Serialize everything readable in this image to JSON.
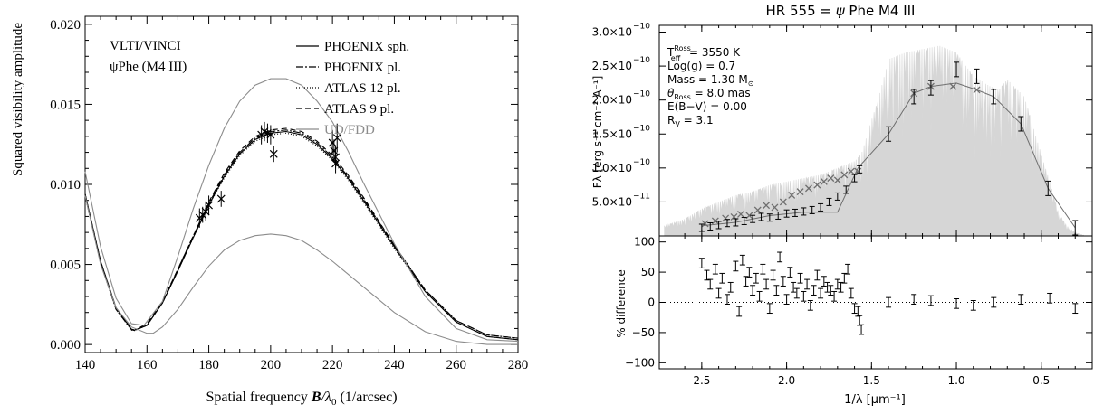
{
  "chart_data": [
    {
      "type": "line",
      "xlabel_text": "Spatial frequency ",
      "xlabel_B": "B",
      "xlabel_slash": "/",
      "xlabel_lambda": "λ",
      "xlabel_sub": "0",
      "xlabel_units": " (1/arcsec)",
      "ylabel": "Squared visibility amplitude",
      "xlim": [
        140,
        280
      ],
      "ylim": [
        -0.0005,
        0.0205
      ],
      "x_ticks": [
        140,
        160,
        180,
        200,
        220,
        240,
        260,
        280
      ],
      "x_tick_labels": [
        "140",
        "160",
        "180",
        "200",
        "220",
        "240",
        "260",
        "280"
      ],
      "y_ticks": [
        0.0,
        0.005,
        0.01,
        0.015,
        0.02
      ],
      "y_tick_labels": [
        "0.000",
        "0.005",
        "0.010",
        "0.015",
        "0.020"
      ],
      "annotation_instrument": "VLTI/VINCI",
      "annotation_star": "ψPhe (M4 III)",
      "legend_position": "top-right",
      "series": [
        {
          "name": "PHOENIX sph.",
          "color": "#000000",
          "dash": "",
          "x": [
            140,
            145,
            150,
            155,
            156,
            160,
            165,
            170,
            175,
            180,
            185,
            190,
            195,
            200,
            205,
            210,
            215,
            220,
            225,
            230,
            240,
            250,
            260,
            270,
            280
          ],
          "y": [
            0.0094,
            0.0052,
            0.0023,
            0.00095,
            0.0009,
            0.0012,
            0.0026,
            0.0046,
            0.0067,
            0.0087,
            0.0105,
            0.0119,
            0.0128,
            0.0132,
            0.0133,
            0.0131,
            0.0125,
            0.0116,
            0.0104,
            0.009,
            0.0061,
            0.0033,
            0.0014,
            0.0005,
            0.0003
          ]
        },
        {
          "name": "PHOENIX pl.",
          "color": "#000000",
          "dash": "8,2,2,2",
          "x": [
            140,
            145,
            150,
            155,
            156,
            160,
            165,
            170,
            175,
            180,
            185,
            190,
            195,
            200,
            205,
            210,
            215,
            220,
            225,
            230,
            240,
            250,
            260,
            270,
            280
          ],
          "y": [
            0.0093,
            0.0051,
            0.0022,
            0.00092,
            0.00088,
            0.0012,
            0.0026,
            0.0047,
            0.0068,
            0.0088,
            0.0106,
            0.012,
            0.0129,
            0.0133,
            0.0134,
            0.0132,
            0.0126,
            0.0117,
            0.0105,
            0.0091,
            0.0062,
            0.0034,
            0.0015,
            0.0006,
            0.0004
          ]
        },
        {
          "name": "ATLAS 12 pl.",
          "color": "#000000",
          "dash": "1,2",
          "x": [
            140,
            145,
            150,
            155,
            156,
            160,
            165,
            170,
            175,
            180,
            185,
            190,
            195,
            200,
            205,
            210,
            215,
            220,
            225,
            230,
            240,
            250,
            260,
            270,
            280
          ],
          "y": [
            0.0093,
            0.0051,
            0.0022,
            0.0009,
            0.00087,
            0.0012,
            0.0026,
            0.0046,
            0.0067,
            0.0087,
            0.0104,
            0.0118,
            0.0127,
            0.0131,
            0.0132,
            0.013,
            0.0124,
            0.0115,
            0.0103,
            0.0089,
            0.006,
            0.0033,
            0.0014,
            0.0005,
            0.0003
          ]
        },
        {
          "name": "ATLAS 9 pl.",
          "color": "#000000",
          "dash": "6,4",
          "x": [
            140,
            145,
            150,
            155,
            156,
            160,
            165,
            170,
            175,
            180,
            185,
            190,
            195,
            200,
            205,
            210,
            215,
            220,
            225,
            230,
            240,
            250,
            260,
            270,
            280
          ],
          "y": [
            0.0094,
            0.0052,
            0.0023,
            0.00096,
            0.0009,
            0.0013,
            0.0027,
            0.0047,
            0.0068,
            0.0089,
            0.0107,
            0.0121,
            0.013,
            0.0134,
            0.0135,
            0.0133,
            0.0127,
            0.0118,
            0.0106,
            0.0092,
            0.0062,
            0.0034,
            0.0015,
            0.0006,
            0.0004
          ]
        },
        {
          "name": "UD/FDD",
          "color": "#8c8c8c",
          "dash": "",
          "x": [
            140,
            145,
            150,
            155,
            159,
            165,
            170,
            175,
            180,
            185,
            190,
            195,
            200,
            205,
            210,
            215,
            220,
            225,
            230,
            240,
            250,
            260,
            270,
            280
          ],
          "y": [
            0.0108,
            0.0061,
            0.0029,
            0.0013,
            0.0012,
            0.0027,
            0.0055,
            0.0085,
            0.0112,
            0.0135,
            0.0152,
            0.0162,
            0.0166,
            0.0166,
            0.0162,
            0.0152,
            0.0139,
            0.0121,
            0.0101,
            0.0063,
            0.003,
            0.001,
            0.0003,
            0.0002
          ]
        },
        {
          "name": "",
          "color": "#8c8c8c",
          "dash": "",
          "x": [
            140,
            145,
            150,
            155,
            160,
            162,
            165,
            170,
            175,
            180,
            185,
            190,
            195,
            200,
            205,
            210,
            215,
            220,
            225,
            230,
            240,
            250,
            260,
            270,
            280
          ],
          "y": [
            0.0093,
            0.005,
            0.0023,
            0.0011,
            0.0007,
            0.0007,
            0.0011,
            0.0022,
            0.0036,
            0.0049,
            0.0059,
            0.0065,
            0.0068,
            0.0069,
            0.0068,
            0.0065,
            0.0059,
            0.0052,
            0.0044,
            0.0036,
            0.002,
            0.0008,
            0.0002,
            0.0,
            0.0
          ]
        }
      ],
      "observations": {
        "name": "",
        "x": [
          177,
          178,
          179,
          180,
          184,
          197,
          198,
          199,
          200,
          201,
          220,
          220.5,
          221,
          221,
          221.5
        ],
        "y": [
          0.0079,
          0.0081,
          0.0083,
          0.0087,
          0.0091,
          0.0131,
          0.0133,
          0.0132,
          0.0131,
          0.0119,
          0.0126,
          0.0121,
          0.0117,
          0.0113,
          0.0129
        ],
        "err": [
          0.0006,
          0.0005,
          0.0006,
          0.0006,
          0.0005,
          0.0006,
          0.0006,
          0.0006,
          0.0006,
          0.0005,
          0.0008,
          0.0007,
          0.0007,
          0.0006,
          0.0009
        ]
      }
    },
    {
      "type": "line",
      "title_text": "HR 555 = ",
      "title_psi": "ψ",
      "title_rest": " Phe  M4 III",
      "xlabel": "1/λ [μm⁻¹]",
      "ylabel": "Fλ [erg s⁻¹ cm⁻² A⁻¹]",
      "xlim": [
        2.75,
        0.2
      ],
      "ylim": [
        0.0,
        3.1e-10
      ],
      "x_ticks": [
        2.5,
        2.0,
        1.5,
        1.0,
        0.5
      ],
      "x_tick_labels": [
        "2.5",
        "2.0",
        "1.5",
        "1.0",
        "0.5"
      ],
      "y_ticks": [
        5e-11,
        1e-10,
        1.5e-10,
        2e-10,
        2.5e-10,
        3e-10
      ],
      "y_tick_mantissas": [
        "5.0×10",
        "1.0×10",
        "1.5×10",
        "2.0×10",
        "2.5×10",
        "3.0×10"
      ],
      "y_tick_exponents": [
        "−11",
        "−10",
        "−10",
        "−10",
        "−10",
        "−10"
      ],
      "params": {
        "teff_label": "T",
        "teff_sup": "Ross",
        "teff_sub": "eff",
        "teff_value": " = 3550 K",
        "logg": "Log(g) =   0.7",
        "mass_label": "Mass =   1.30 M",
        "mass_sun": "⊙",
        "theta_label": "θ",
        "theta_sub": "Ross",
        "theta_value": " =   8.0 mas",
        "ebv": "E(B−V) = 0.00",
        "rv": "R",
        "rv_sub": "V",
        "rv_value": " = 3.1"
      },
      "model_spectrum": {
        "color": "#d6d6d6",
        "upper_x": [
          2.72,
          2.6,
          2.5,
          2.4,
          2.3,
          2.2,
          2.1,
          2.0,
          1.9,
          1.8,
          1.7,
          1.6,
          1.56,
          1.5,
          1.45,
          1.4,
          1.3,
          1.2,
          1.1,
          1.0,
          0.9,
          0.8,
          0.75,
          0.7,
          0.6,
          0.5,
          0.45,
          0.4,
          0.35,
          0.3,
          0.25
        ],
        "upper_y": [
          1.5e-11,
          2.5e-11,
          4e-11,
          5e-11,
          6e-11,
          6.5e-11,
          7.5e-11,
          8e-11,
          8.5e-11,
          9e-11,
          1e-10,
          1.1e-10,
          1.2e-10,
          1.7e-10,
          2.1e-10,
          2.6e-10,
          2.7e-10,
          2.75e-10,
          2.8e-10,
          2.7e-10,
          2.35e-10,
          2.2e-10,
          2.15e-10,
          2.3e-10,
          2.05e-10,
          1.2e-10,
          8e-11,
          3.5e-11,
          1.5e-11,
          5e-12,
          1e-12
        ],
        "lower_x": [
          2.72,
          2.6,
          2.5,
          2.4,
          2.3,
          2.2,
          2.1,
          2.0,
          1.9,
          1.8,
          1.7,
          1.6,
          1.56,
          1.5,
          1.45,
          1.4,
          1.3,
          1.2,
          1.1,
          1.0,
          0.9,
          0.8,
          0.75,
          0.7,
          0.6,
          0.5,
          0.45,
          0.4,
          0.35,
          0.3,
          0.25
        ],
        "lower_y": [
          0,
          0,
          0,
          0,
          0,
          0,
          0,
          0,
          0,
          0,
          0,
          0,
          0,
          0,
          0,
          0,
          0,
          0,
          0,
          0,
          0,
          0,
          0,
          0,
          0,
          0,
          0,
          0,
          0,
          0,
          0
        ]
      },
      "synthetic_photometry": {
        "color": "#6e6e6e",
        "x": [
          2.5,
          2.3,
          2.1,
          1.9,
          1.7,
          1.58,
          1.4,
          1.25,
          1.15,
          1.0,
          0.88,
          0.78,
          0.62,
          0.46,
          0.3
        ],
        "y": [
          1.5e-11,
          2e-11,
          3e-11,
          3.5e-11,
          3.5e-11,
          1e-10,
          1.5e-10,
          2.1e-10,
          2.2e-10,
          2.25e-10,
          2.15e-10,
          2.05e-10,
          1.65e-10,
          7e-11,
          1.2e-11
        ]
      },
      "observed_flux": {
        "x": [
          2.5,
          2.45,
          2.4,
          2.35,
          2.3,
          2.25,
          2.2,
          2.15,
          2.1,
          2.05,
          2.0,
          1.95,
          1.9,
          1.85,
          1.8,
          1.75,
          1.7,
          1.65,
          1.6,
          1.57,
          1.4,
          1.25,
          1.15,
          1.0,
          0.88,
          0.78,
          0.62,
          0.46,
          0.3
        ],
        "y": [
          1.2e-11,
          1.4e-11,
          1.6e-11,
          1.9e-11,
          2e-11,
          2.2e-11,
          2.5e-11,
          2.8e-11,
          2.7e-11,
          3e-11,
          3.3e-11,
          3.4e-11,
          3.6e-11,
          3.8e-11,
          4.2e-11,
          5e-11,
          5.8e-11,
          6.8e-11,
          8.5e-11,
          9.8e-11,
          1.5e-10,
          2.05e-10,
          2.18e-10,
          2.45e-10,
          2.35e-10,
          2.05e-10,
          1.65e-10,
          7e-11,
          1.2e-11
        ]
      },
      "model_markers": {
        "x": [
          2.48,
          2.42,
          2.36,
          2.31,
          2.27,
          2.22,
          2.17,
          2.12,
          2.07,
          2.02,
          1.97,
          1.92,
          1.87,
          1.82,
          1.78,
          1.74,
          1.7,
          1.66,
          1.62,
          1.58,
          1.25,
          1.15,
          1.02,
          0.88
        ],
        "y": [
          1.8e-11,
          2.2e-11,
          2.6e-11,
          2.8e-11,
          3.2e-11,
          3e-11,
          3.8e-11,
          4.5e-11,
          4.2e-11,
          5e-11,
          6e-11,
          6.5e-11,
          7e-11,
          7.5e-11,
          8e-11,
          8.5e-11,
          8.2e-11,
          9e-11,
          9.5e-11,
          9.5e-11,
          2.1e-10,
          2.2e-10,
          2.2e-10,
          2.15e-10
        ]
      }
    },
    {
      "type": "scatter",
      "ylabel": "% difference",
      "xlim": [
        2.75,
        0.2
      ],
      "ylim": [
        -110,
        110
      ],
      "y_ticks": [
        -100,
        -50,
        0,
        50,
        100
      ],
      "y_tick_labels": [
        "−100",
        "−50",
        "0",
        "50",
        "100"
      ],
      "zero_line": true,
      "x": [
        2.5,
        2.47,
        2.45,
        2.42,
        2.4,
        2.38,
        2.35,
        2.33,
        2.3,
        2.28,
        2.26,
        2.24,
        2.22,
        2.2,
        2.18,
        2.16,
        2.14,
        2.12,
        2.1,
        2.08,
        2.06,
        2.04,
        2.02,
        2.0,
        1.98,
        1.96,
        1.94,
        1.92,
        1.9,
        1.88,
        1.86,
        1.84,
        1.82,
        1.8,
        1.78,
        1.76,
        1.74,
        1.72,
        1.7,
        1.68,
        1.66,
        1.64,
        1.62,
        1.6,
        1.58,
        1.57,
        1.56,
        1.4,
        1.25,
        1.15,
        1.0,
        0.9,
        0.78,
        0.62,
        0.45,
        0.3
      ],
      "y": [
        65,
        45,
        30,
        55,
        15,
        40,
        5,
        25,
        60,
        -15,
        70,
        35,
        50,
        20,
        40,
        10,
        55,
        30,
        -10,
        45,
        20,
        75,
        35,
        5,
        50,
        25,
        15,
        40,
        10,
        30,
        -5,
        20,
        45,
        15,
        35,
        25,
        20,
        10,
        30,
        25,
        40,
        55,
        15,
        -10,
        -15,
        -30,
        -45,
        0,
        5,
        3,
        -2,
        -5,
        0,
        5,
        7,
        -10
      ],
      "err": 8
    }
  ]
}
